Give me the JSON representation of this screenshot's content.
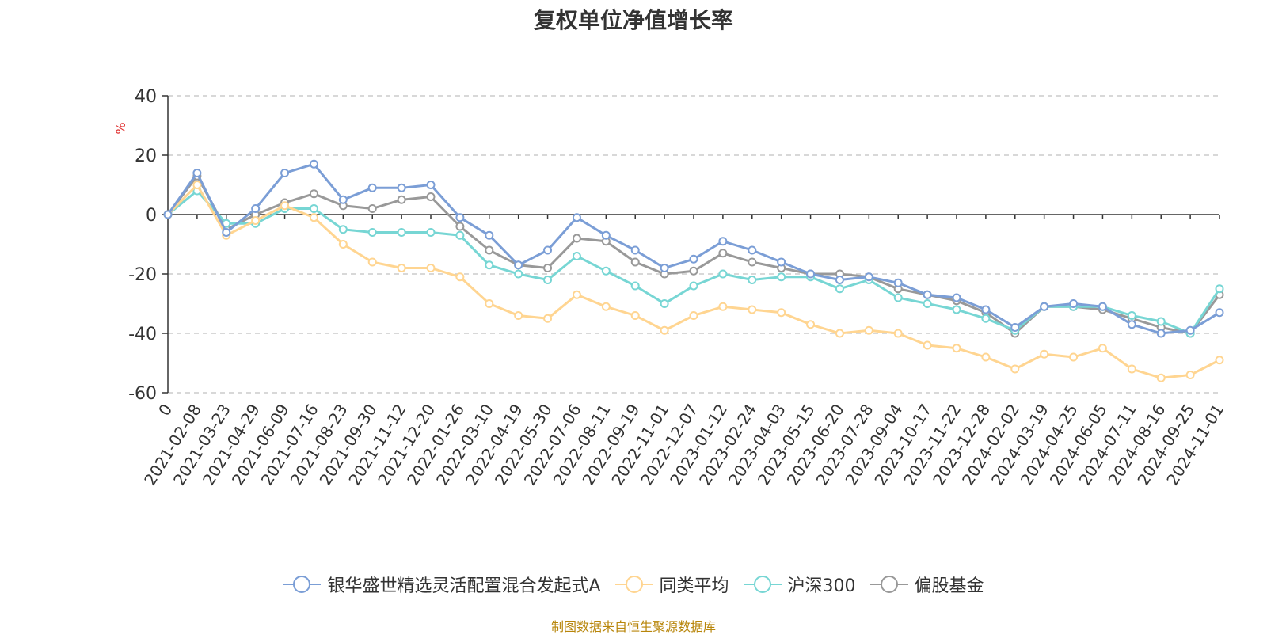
{
  "chart_data": {
    "type": "line",
    "title": "复权单位净值增长率",
    "ylabel": "%",
    "xlabel": "",
    "ylim": [
      -60,
      40
    ],
    "yticks": [
      40,
      20,
      0,
      -20,
      -40,
      -60
    ],
    "grid": true,
    "legend_position": "bottom-center",
    "categories": [
      "0",
      "2021-02-08",
      "2021-03-23",
      "2021-04-29",
      "2021-06-09",
      "2021-07-16",
      "2021-08-23",
      "2021-09-30",
      "2021-11-12",
      "2021-12-20",
      "2022-01-26",
      "2022-03-10",
      "2022-04-19",
      "2022-05-30",
      "2022-07-06",
      "2022-08-11",
      "2022-09-19",
      "2022-11-01",
      "2022-12-07",
      "2023-01-12",
      "2023-02-24",
      "2023-04-03",
      "2023-05-15",
      "2023-06-20",
      "2023-07-28",
      "2023-09-04",
      "2023-10-17",
      "2023-11-22",
      "2023-12-28",
      "2024-02-02",
      "2024-03-19",
      "2024-04-25",
      "2024-06-05",
      "2024-07-11",
      "2024-08-16",
      "2024-09-25",
      "2024-11-01"
    ],
    "series": [
      {
        "name": "银华盛世精选灵活配置混合发起式A",
        "color": "#7b9ed6",
        "values": [
          0,
          14,
          -6,
          2,
          14,
          17,
          5,
          9,
          9,
          10,
          -1,
          -7,
          -17,
          -12,
          -1,
          -7,
          -12,
          -18,
          -15,
          -9,
          -12,
          -16,
          -20,
          -22,
          -21,
          -23,
          -27,
          -28,
          -32,
          -38,
          -31,
          -30,
          -31,
          -37,
          -40,
          -39,
          -33
        ]
      },
      {
        "name": "同类平均",
        "color": "#ffd591",
        "values": [
          0,
          10,
          -7,
          -2,
          3,
          -1,
          -10,
          -16,
          -18,
          -18,
          -21,
          -30,
          -34,
          -35,
          -27,
          -31,
          -34,
          -39,
          -34,
          -31,
          -32,
          -33,
          -37,
          -40,
          -39,
          -40,
          -44,
          -45,
          -48,
          -52,
          -47,
          -48,
          -45,
          -52,
          -55,
          -54,
          -49
        ]
      },
      {
        "name": "沪深300",
        "color": "#77d6d4",
        "values": [
          0,
          8,
          -3,
          -3,
          2,
          2,
          -5,
          -6,
          -6,
          -6,
          -7,
          -17,
          -20,
          -22,
          -14,
          -19,
          -24,
          -30,
          -24,
          -20,
          -22,
          -21,
          -21,
          -25,
          -22,
          -28,
          -30,
          -32,
          -35,
          -39,
          -31,
          -31,
          -31,
          -34,
          -36,
          -40,
          -25
        ]
      },
      {
        "name": "偏股基金",
        "color": "#999999",
        "values": [
          0,
          13,
          -5,
          0,
          4,
          7,
          3,
          2,
          5,
          6,
          -4,
          -12,
          -17,
          -18,
          -8,
          -9,
          -16,
          -20,
          -19,
          -13,
          -16,
          -18,
          -20,
          -20,
          -21,
          -25,
          -27,
          -29,
          -33,
          -40,
          -31,
          -31,
          -32,
          -35,
          -38,
          -40,
          -27
        ]
      }
    ]
  },
  "source": "制图数据来自恒生聚源数据库"
}
